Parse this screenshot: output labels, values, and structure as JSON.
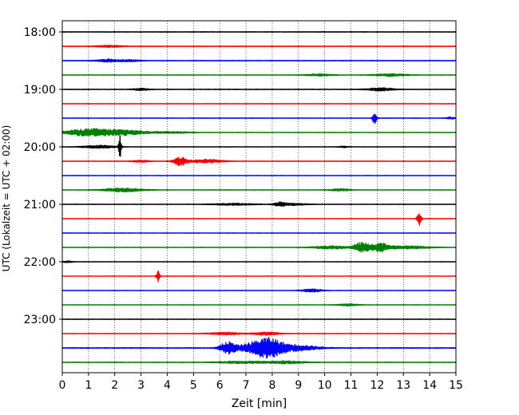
{
  "chart_data": {
    "type": "line",
    "title": "",
    "xlabel": "Zeit  [min]",
    "ylabel": "UTC (Lokalzeit = UTC + 02:00)",
    "xlim": [
      0,
      15
    ],
    "x_ticks": [
      "0",
      "1",
      "2",
      "3",
      "4",
      "5",
      "6",
      "7",
      "8",
      "9",
      "10",
      "11",
      "12",
      "13",
      "14",
      "15"
    ],
    "y_ticks": [
      "18:00",
      "19:00",
      "20:00",
      "21:00",
      "22:00",
      "23:00"
    ],
    "grid": "vertical-dotted",
    "trace_colors": [
      "#000000",
      "#ff0000",
      "#0000ff",
      "#008000"
    ],
    "traces": [
      {
        "start": "18:00",
        "color": "#000000",
        "base_noise": 0.35,
        "events": []
      },
      {
        "start": "18:15",
        "color": "#ff0000",
        "base_noise": 0.35,
        "events": [
          {
            "t": 1.8,
            "amp": 1.2,
            "dur": 0.8
          }
        ]
      },
      {
        "start": "18:30",
        "color": "#0000ff",
        "base_noise": 0.35,
        "events": [
          {
            "t": 1.7,
            "amp": 1.8,
            "dur": 0.6
          },
          {
            "t": 2.5,
            "amp": 1.2,
            "dur": 0.7
          }
        ]
      },
      {
        "start": "18:45",
        "color": "#008000",
        "base_noise": 0.3,
        "events": [
          {
            "t": 9.8,
            "amp": 1.2,
            "dur": 0.8
          },
          {
            "t": 12.5,
            "amp": 1.5,
            "dur": 1.0
          }
        ]
      },
      {
        "start": "19:00",
        "color": "#000000",
        "base_noise": 0.35,
        "events": [
          {
            "t": 3.0,
            "amp": 1.3,
            "dur": 0.5
          },
          {
            "t": 12.1,
            "amp": 2.0,
            "dur": 0.8
          }
        ]
      },
      {
        "start": "19:15",
        "color": "#ff0000",
        "base_noise": 0.3,
        "events": []
      },
      {
        "start": "19:30",
        "color": "#0000ff",
        "base_noise": 0.3,
        "events": [
          {
            "t": 11.9,
            "amp": 8.0,
            "dur": 0.12
          },
          {
            "t": 14.8,
            "amp": 1.2,
            "dur": 0.3
          }
        ]
      },
      {
        "start": "19:45",
        "color": "#008000",
        "base_noise": 0.3,
        "events": [
          {
            "t": 1.0,
            "amp": 4.5,
            "dur": 1.4
          },
          {
            "t": 2.4,
            "amp": 3.0,
            "dur": 1.4
          },
          {
            "t": 4.2,
            "amp": 1.2,
            "dur": 1.0
          }
        ]
      },
      {
        "start": "20:00",
        "color": "#000000",
        "base_noise": 0.25,
        "events": [
          {
            "t": 1.4,
            "amp": 1.8,
            "dur": 1.0
          },
          {
            "t": 2.2,
            "amp": 14.0,
            "dur": 0.08
          },
          {
            "t": 10.7,
            "amp": 0.9,
            "dur": 0.3
          }
        ]
      },
      {
        "start": "20:15",
        "color": "#ff0000",
        "base_noise": 0.3,
        "events": [
          {
            "t": 3.0,
            "amp": 1.3,
            "dur": 0.5
          },
          {
            "t": 4.5,
            "amp": 5.5,
            "dur": 0.4
          },
          {
            "t": 5.5,
            "amp": 2.2,
            "dur": 1.0
          }
        ]
      },
      {
        "start": "20:30",
        "color": "#0000ff",
        "base_noise": 0.25,
        "events": []
      },
      {
        "start": "20:45",
        "color": "#008000",
        "base_noise": 0.3,
        "events": [
          {
            "t": 2.3,
            "amp": 2.5,
            "dur": 1.2
          },
          {
            "t": 10.6,
            "amp": 1.3,
            "dur": 0.6
          }
        ]
      },
      {
        "start": "21:00",
        "color": "#000000",
        "base_noise": 0.3,
        "events": [
          {
            "t": 6.5,
            "amp": 1.2,
            "dur": 1.2
          },
          {
            "t": 8.3,
            "amp": 2.5,
            "dur": 0.35
          },
          {
            "t": 8.8,
            "amp": 1.3,
            "dur": 0.8
          }
        ]
      },
      {
        "start": "21:15",
        "color": "#ff0000",
        "base_noise": 0.25,
        "events": [
          {
            "t": 13.6,
            "amp": 9.0,
            "dur": 0.12
          }
        ]
      },
      {
        "start": "21:30",
        "color": "#0000ff",
        "base_noise": 0.25,
        "events": []
      },
      {
        "start": "21:45",
        "color": "#008000",
        "base_noise": 0.3,
        "events": [
          {
            "t": 10.2,
            "amp": 2.0,
            "dur": 1.0
          },
          {
            "t": 11.4,
            "amp": 6.0,
            "dur": 0.5
          },
          {
            "t": 12.1,
            "amp": 5.5,
            "dur": 0.6
          },
          {
            "t": 13.2,
            "amp": 2.0,
            "dur": 1.2
          }
        ]
      },
      {
        "start": "22:00",
        "color": "#000000",
        "base_noise": 0.25,
        "events": [
          {
            "t": 0.2,
            "amp": 1.0,
            "dur": 0.3
          }
        ]
      },
      {
        "start": "22:15",
        "color": "#ff0000",
        "base_noise": 0.2,
        "events": [
          {
            "t": 3.65,
            "amp": 7.0,
            "dur": 0.1
          }
        ]
      },
      {
        "start": "22:30",
        "color": "#0000ff",
        "base_noise": 0.25,
        "events": [
          {
            "t": 9.5,
            "amp": 2.0,
            "dur": 0.6
          }
        ]
      },
      {
        "start": "22:45",
        "color": "#008000",
        "base_noise": 0.25,
        "events": [
          {
            "t": 10.9,
            "amp": 1.3,
            "dur": 0.6
          }
        ]
      },
      {
        "start": "23:00",
        "color": "#000000",
        "base_noise": 0.3,
        "events": []
      },
      {
        "start": "23:15",
        "color": "#ff0000",
        "base_noise": 0.3,
        "events": [
          {
            "t": 6.2,
            "amp": 1.5,
            "dur": 1.0
          },
          {
            "t": 7.8,
            "amp": 1.8,
            "dur": 0.8
          }
        ]
      },
      {
        "start": "23:30",
        "color": "#0000ff",
        "base_noise": 0.45,
        "events": [
          {
            "t": 6.3,
            "amp": 7.5,
            "dur": 0.45
          },
          {
            "t": 7.3,
            "amp": 6.0,
            "dur": 1.0
          },
          {
            "t": 7.9,
            "amp": 9.0,
            "dur": 0.8
          },
          {
            "t": 8.8,
            "amp": 4.0,
            "dur": 1.4
          }
        ]
      },
      {
        "start": "23:45",
        "color": "#008000",
        "base_noise": 0.35,
        "events": [
          {
            "t": 6.8,
            "amp": 1.4,
            "dur": 1.4
          },
          {
            "t": 8.5,
            "amp": 1.6,
            "dur": 1.2
          }
        ]
      }
    ]
  }
}
